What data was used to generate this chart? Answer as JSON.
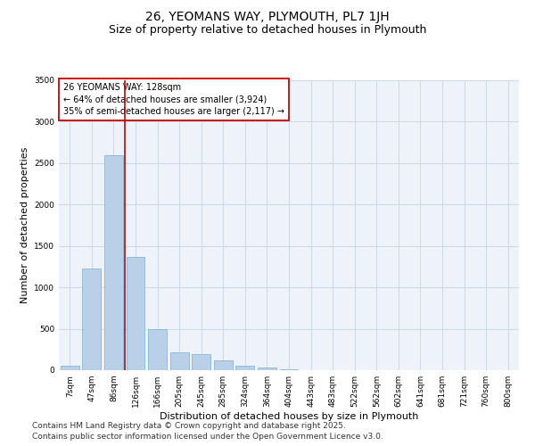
{
  "title_line1": "26, YEOMANS WAY, PLYMOUTH, PL7 1JH",
  "title_line2": "Size of property relative to detached houses in Plymouth",
  "xlabel": "Distribution of detached houses by size in Plymouth",
  "ylabel": "Number of detached properties",
  "categories": [
    "7sqm",
    "47sqm",
    "86sqm",
    "126sqm",
    "166sqm",
    "205sqm",
    "245sqm",
    "285sqm",
    "324sqm",
    "364sqm",
    "404sqm",
    "443sqm",
    "483sqm",
    "522sqm",
    "562sqm",
    "602sqm",
    "641sqm",
    "681sqm",
    "721sqm",
    "760sqm",
    "800sqm"
  ],
  "values": [
    50,
    1230,
    2600,
    1370,
    500,
    220,
    195,
    115,
    55,
    30,
    10,
    5,
    2,
    0,
    0,
    0,
    0,
    0,
    0,
    0,
    0
  ],
  "bar_color": "#b8d0e8",
  "bar_edge_color": "#7aaed4",
  "grid_color": "#c8d8eb",
  "background_color": "#eef3fa",
  "vline_color": "#cc0000",
  "annotation_text": "26 YEOMANS WAY: 128sqm\n← 64% of detached houses are smaller (3,924)\n35% of semi-detached houses are larger (2,117) →",
  "annotation_box_color": "#cc0000",
  "ylim": [
    0,
    3500
  ],
  "yticks": [
    0,
    500,
    1000,
    1500,
    2000,
    2500,
    3000,
    3500
  ],
  "footer_line1": "Contains HM Land Registry data © Crown copyright and database right 2025.",
  "footer_line2": "Contains public sector information licensed under the Open Government Licence v3.0.",
  "title_fontsize": 10,
  "subtitle_fontsize": 9,
  "axis_label_fontsize": 8,
  "tick_fontsize": 6.5,
  "annotation_fontsize": 7,
  "footer_fontsize": 6.5,
  "ylabel_fontsize": 8
}
